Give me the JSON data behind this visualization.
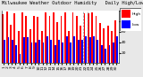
{
  "title": "Milwaukee Weather Outdoor Humidity   Daily High/Low",
  "background_color": "#e8e8e8",
  "plot_bg_color": "#ffffff",
  "x_labels": [
    "1",
    "2",
    "3",
    "4",
    "5",
    "6",
    "7",
    "8",
    "9",
    "10",
    "11",
    "12",
    "13",
    "14",
    "15",
    "16",
    "17",
    "18",
    "19",
    "20",
    "21",
    "22",
    "23",
    "24",
    "25",
    "26",
    "27",
    "28",
    "29",
    "30"
  ],
  "high_values": [
    93,
    99,
    73,
    96,
    62,
    97,
    91,
    65,
    91,
    89,
    62,
    97,
    91,
    97,
    79,
    91,
    97,
    62,
    97,
    91,
    72,
    96,
    96,
    97,
    91,
    76,
    66,
    72,
    62,
    81
  ],
  "low_values": [
    45,
    50,
    44,
    35,
    18,
    50,
    50,
    39,
    40,
    44,
    39,
    51,
    45,
    34,
    44,
    39,
    51,
    39,
    51,
    45,
    44,
    51,
    50,
    51,
    45,
    34,
    28,
    34,
    39,
    51
  ],
  "dashed_line_x": [
    20.5,
    21.5
  ],
  "ylim": [
    0,
    100
  ],
  "yticks": [
    20,
    40,
    60,
    80,
    100
  ],
  "high_color": "#ff0000",
  "low_color": "#0000ff",
  "legend_labels": [
    "High",
    "Low"
  ],
  "bar_width": 0.42,
  "tick_fontsize": 3.2,
  "title_fontsize": 3.8
}
